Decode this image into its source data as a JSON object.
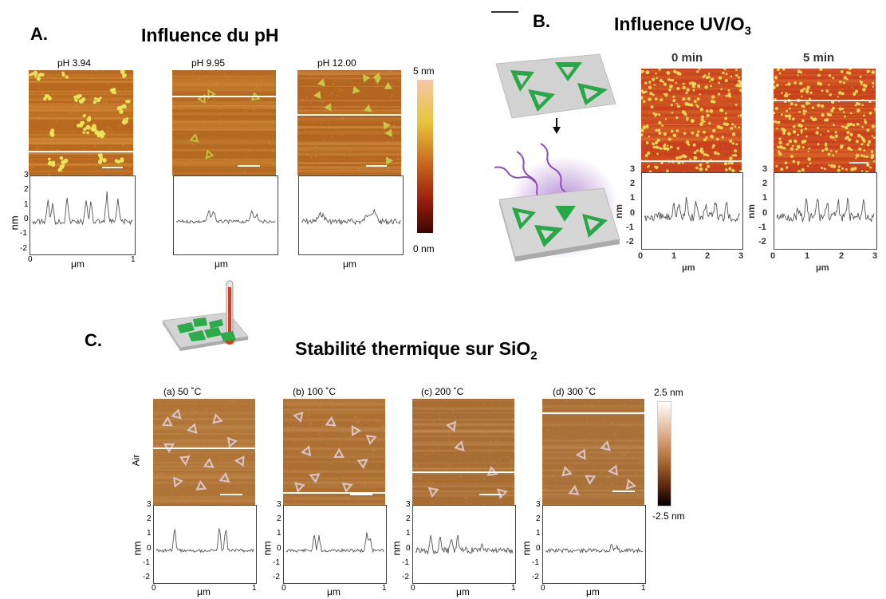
{
  "sections": {
    "A": {
      "label": "A.",
      "title": "Influence du pH",
      "panels": [
        {
          "condition": "pH 3.94"
        },
        {
          "condition": "pH 9.95"
        },
        {
          "condition": "pH  12.00"
        }
      ],
      "colorbar": {
        "max_label": "5 nm",
        "min_label": "0 nm",
        "colors": [
          "#f5c7a8",
          "#e9c43a",
          "#c8661d",
          "#9e1f0e",
          "#3a0804"
        ]
      },
      "axis": {
        "y_ticks": [
          "3",
          "2",
          "1",
          "0",
          "-1",
          "-2"
        ],
        "x_ticks": [
          "0",
          "1"
        ],
        "ylabel": "nm",
        "xlabel": "μm"
      }
    },
    "B": {
      "label": "B.",
      "title_main": "Influence UV/O",
      "title_sub": "3",
      "panels": [
        {
          "condition": "0 min"
        },
        {
          "condition": "5 min"
        }
      ],
      "axis": {
        "y_ticks": [
          "3",
          "2",
          "1",
          "0",
          "-1",
          "-2"
        ],
        "x_ticks": [
          "0",
          "1",
          "2",
          "3"
        ],
        "ylabel": "nm",
        "xlabel": "μm"
      },
      "icons": [
        "triangle-origami-on-surface-icon",
        "arrow-down-icon",
        "uv-ozone-treatment-icon"
      ]
    },
    "C": {
      "label": "C.",
      "title_main": "Stabilité thermique sur SiO",
      "title_sub": "2",
      "side_label": "Air",
      "panels": [
        {
          "condition": "(a) 50 ˚C"
        },
        {
          "condition": "(b) 100 ˚C"
        },
        {
          "condition": "(c) 200 ˚C"
        },
        {
          "condition": "(d) 300 ˚C"
        }
      ],
      "colorbar": {
        "max_label": "2.5 nm",
        "min_label": "-2.5 nm"
      },
      "axis": {
        "y_ticks": [
          "3",
          "2",
          "1",
          "0",
          "-1",
          "-2"
        ],
        "x_ticks": [
          "0",
          "1"
        ],
        "ylabel": "nm",
        "xlabel": "μm"
      },
      "icons": [
        "thermometer-heated-surface-icon"
      ]
    }
  }
}
